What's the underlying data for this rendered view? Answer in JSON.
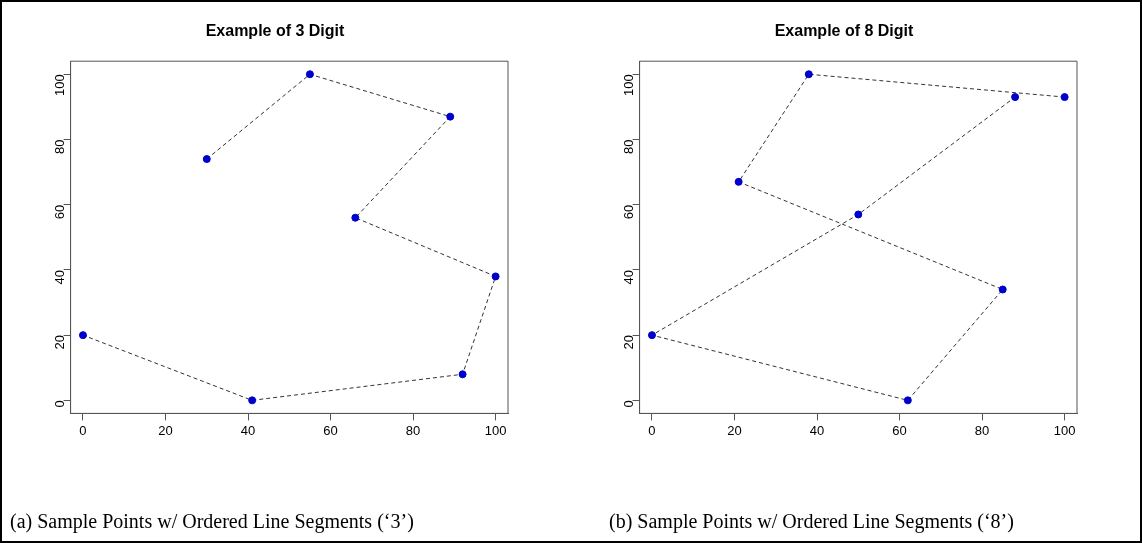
{
  "chart_data": [
    {
      "type": "line",
      "title": "Example of 3 Digit",
      "x": [
        30,
        55,
        89,
        66,
        100,
        92,
        41,
        0
      ],
      "values": [
        74,
        100,
        87,
        56,
        38,
        8,
        0,
        20
      ],
      "color": "#0000cc",
      "marker": "circle",
      "line_style": "dashed",
      "grid": false,
      "legend": false,
      "xlim": [
        -3,
        103
      ],
      "ylim": [
        -4,
        104
      ],
      "xticks": [
        0,
        20,
        40,
        60,
        80,
        100
      ],
      "yticks": [
        0,
        20,
        40,
        60,
        80,
        100
      ],
      "annotations": [
        "(a) Sample Points w/ Ordered Line Segments (‘3’)"
      ]
    },
    {
      "type": "line",
      "title": "Example of 8 Digit",
      "x": [
        100,
        38,
        21,
        85,
        62,
        0,
        50,
        88
      ],
      "values": [
        93,
        100,
        67,
        34,
        0,
        20,
        57,
        93
      ],
      "color": "#0000cc",
      "marker": "circle",
      "line_style": "dashed",
      "grid": false,
      "legend": false,
      "xlim": [
        -3,
        103
      ],
      "ylim": [
        -4,
        104
      ],
      "xticks": [
        0,
        20,
        40,
        60,
        80,
        100
      ],
      "yticks": [
        0,
        20,
        40,
        60,
        80,
        100
      ],
      "annotations": [
        "(b) Sample Points w/ Ordered Line Segments (‘8’)"
      ]
    }
  ]
}
